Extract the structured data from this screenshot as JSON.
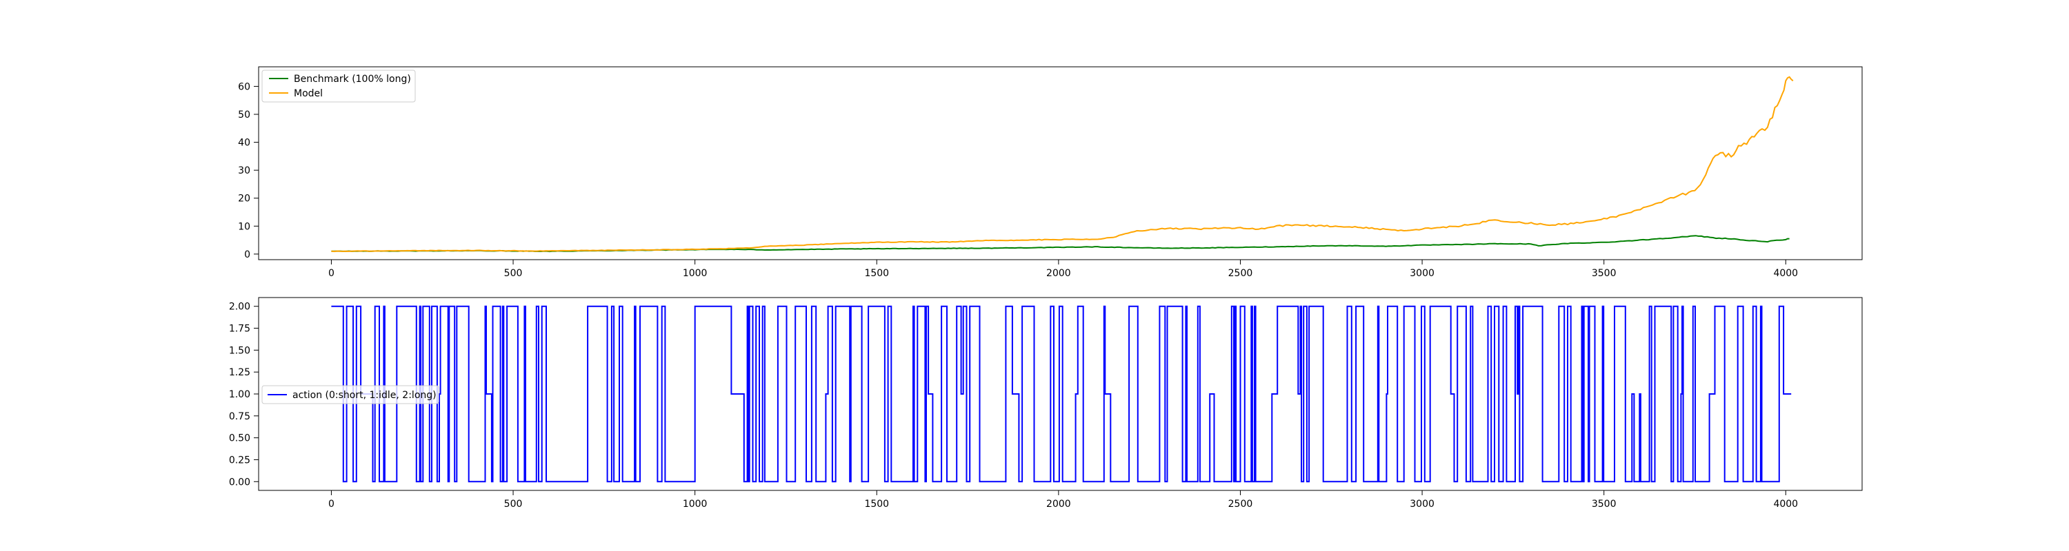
{
  "chart_data": [
    {
      "type": "line",
      "title": "",
      "xlabel": "",
      "ylabel": "",
      "xlim": [
        -200,
        4210
      ],
      "ylim": [
        -2,
        67
      ],
      "xticks": [
        0,
        500,
        1000,
        1500,
        2000,
        2500,
        3000,
        3500,
        4000
      ],
      "yticks": [
        0,
        10,
        20,
        30,
        40,
        50,
        60
      ],
      "legend_position": "upper-left",
      "grid": false,
      "series": [
        {
          "name": "Benchmark (100% long)",
          "color": "#008000",
          "x": [
            0,
            200,
            400,
            600,
            800,
            1000,
            1100,
            1200,
            1400,
            1600,
            1800,
            2000,
            2100,
            2200,
            2300,
            2400,
            2500,
            2600,
            2700,
            2800,
            2900,
            3000,
            3100,
            3200,
            3300,
            3320,
            3400,
            3500,
            3600,
            3700,
            3760,
            3800,
            3850,
            3900,
            3950,
            4000,
            4010
          ],
          "y": [
            1.0,
            1.1,
            1.2,
            1.0,
            1.3,
            1.6,
            1.7,
            1.5,
            1.8,
            2.0,
            2.1,
            2.4,
            2.6,
            2.3,
            2.1,
            2.2,
            2.4,
            2.6,
            2.9,
            3.0,
            2.8,
            3.2,
            3.4,
            3.7,
            3.6,
            3.0,
            3.8,
            4.2,
            5.0,
            6.0,
            6.5,
            5.8,
            5.5,
            4.8,
            4.5,
            5.2,
            5.5
          ]
        },
        {
          "name": "Model",
          "color": "#ffa500",
          "x": [
            0,
            200,
            400,
            550,
            800,
            1000,
            1100,
            1150,
            1200,
            1300,
            1400,
            1500,
            1600,
            1700,
            1800,
            1900,
            2000,
            2100,
            2150,
            2200,
            2300,
            2400,
            2500,
            2550,
            2600,
            2650,
            2700,
            2800,
            2900,
            2950,
            3000,
            3050,
            3100,
            3150,
            3200,
            3250,
            3300,
            3350,
            3400,
            3450,
            3500,
            3550,
            3600,
            3650,
            3700,
            3750,
            3780,
            3800,
            3820,
            3850,
            3870,
            3900,
            3920,
            3950,
            3970,
            3990,
            4000,
            4010,
            4020
          ],
          "y": [
            1.0,
            1.2,
            1.3,
            1.1,
            1.4,
            1.7,
            2.0,
            2.2,
            2.8,
            3.2,
            3.8,
            4.2,
            4.4,
            4.3,
            4.8,
            5.0,
            5.2,
            5.3,
            6.0,
            8.0,
            9.2,
            9.0,
            9.5,
            8.8,
            10.0,
            10.5,
            10.2,
            9.8,
            8.8,
            8.3,
            9.0,
            9.5,
            10.0,
            11.0,
            12.2,
            11.5,
            11.0,
            10.5,
            10.7,
            11.5,
            12.5,
            14.0,
            16.0,
            18.5,
            21.0,
            22.5,
            28.0,
            34.0,
            36.0,
            35.0,
            38.0,
            41.0,
            43.5,
            46.0,
            52.0,
            56.0,
            61.0,
            64.5,
            62.0
          ]
        }
      ]
    },
    {
      "type": "line",
      "title": "",
      "xlabel": "",
      "ylabel": "",
      "xlim": [
        -200,
        4210
      ],
      "ylim": [
        -0.1,
        2.1
      ],
      "xticks": [
        0,
        500,
        1000,
        1500,
        2000,
        2500,
        3000,
        3500,
        4000
      ],
      "yticks": [
        0.0,
        0.25,
        0.5,
        0.75,
        1.0,
        1.25,
        1.5,
        1.75,
        2.0
      ],
      "ytick_labels": [
        "0.00",
        "0.25",
        "0.50",
        "0.75",
        "1.00",
        "1.25",
        "1.50",
        "1.75",
        "2.00"
      ],
      "legend_position": "center-left",
      "grid": false,
      "step_style": true,
      "series": [
        {
          "name": "action (0:short, 1:idle, 2:long)",
          "color": "#0000ff",
          "x_start": 0,
          "x_end": 4015,
          "levels": [
            0,
            1,
            2
          ],
          "regimes": [
            {
              "from": 0,
              "to": 30,
              "mode": "long"
            },
            {
              "from": 30,
              "to": 1000,
              "mode": "busy"
            },
            {
              "from": 1000,
              "to": 1100,
              "mode": "long"
            },
            {
              "from": 1100,
              "to": 1135,
              "mode": "idle"
            },
            {
              "from": 1135,
              "to": 4015,
              "mode": "busy"
            }
          ],
          "switch_rate": 0.33,
          "seed": 7
        }
      ]
    }
  ],
  "legend": {
    "top": [
      "Benchmark (100% long)",
      "Model"
    ],
    "bottom": [
      "action (0:short, 1:idle, 2:long)"
    ]
  }
}
